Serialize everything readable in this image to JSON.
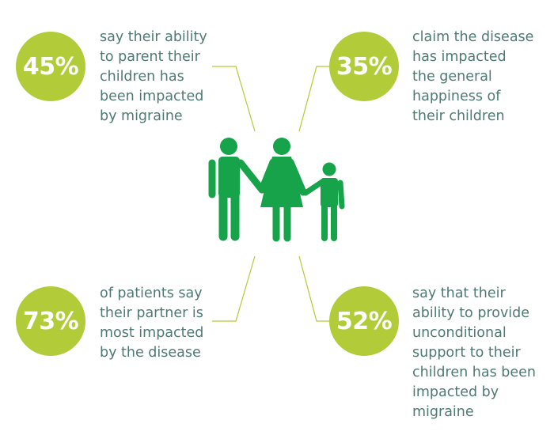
{
  "colors": {
    "circle": "#b2cb38",
    "text": "#4f7a73",
    "figure": "#16a34a",
    "line": "#b2cb38"
  },
  "figure_icon": "family-icon",
  "stats": [
    {
      "value": "45%",
      "lines": [
        "say their ability",
        "to parent their",
        "children has",
        "been impacted",
        "by migraine"
      ]
    },
    {
      "value": "35%",
      "lines": [
        "claim the disease",
        "has impacted",
        "the general",
        "happiness of",
        "their children"
      ]
    },
    {
      "value": "73%",
      "lines": [
        "of patients say",
        "their partner is",
        "most impacted",
        "by the disease"
      ]
    },
    {
      "value": "52%",
      "lines": [
        "say that their",
        "ability to provide",
        "unconditional",
        "support to their",
        "children has been",
        "impacted by",
        "migraine"
      ]
    }
  ]
}
